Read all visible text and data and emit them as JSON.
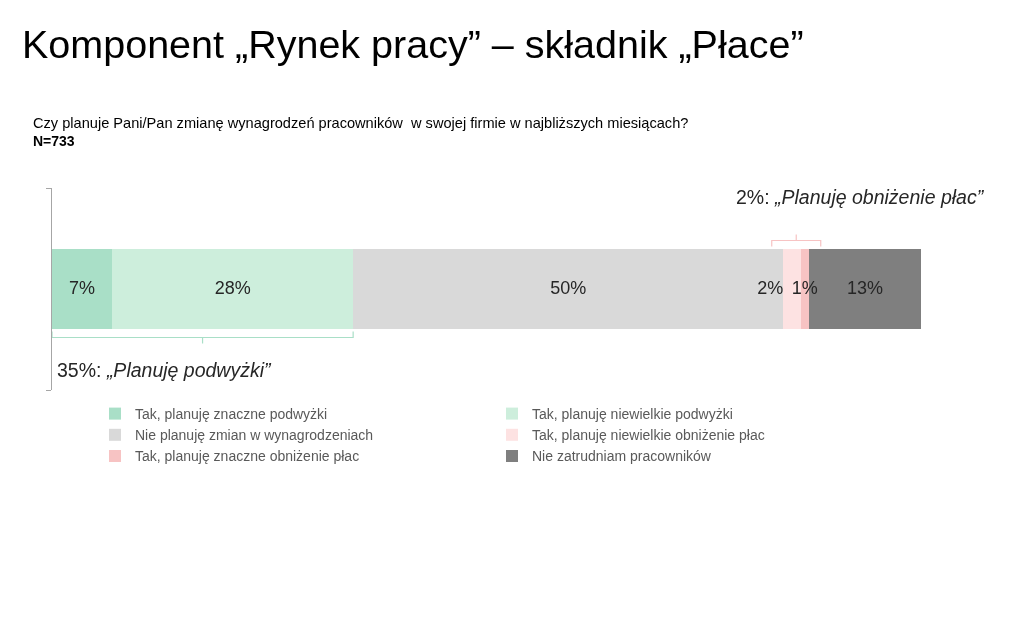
{
  "chart_data": {
    "type": "bar",
    "orientation": "horizontal",
    "stacked": true,
    "title": "Komponent „Rynek pracy” – składnik „Płace”",
    "subtitle": "Czy planuje Pani/Pan zmianę wynagrodzeń pracowników  w swojej firmie w najbliższych miesiącach?",
    "annotations": [
      "N=733",
      "35%: „Planuję podwyżki”",
      "2%: „Planuję obniżenie płac”"
    ],
    "categories": [
      null
    ],
    "series": [
      {
        "name": "Tak, planuję znaczne podwyżki",
        "color": "#a9dfc7",
        "values": [
          7
        ],
        "value_labels": [
          "7%"
        ]
      },
      {
        "name": "Tak, planuję niewielkie podwyżki",
        "color": "#cdeedc",
        "values": [
          28
        ],
        "value_labels": [
          "28%"
        ]
      },
      {
        "name": "Nie planuję zmian w wynagrodzeniach",
        "color": "#d9d9d9",
        "values": [
          50
        ],
        "value_labels": [
          "50%"
        ]
      },
      {
        "name": "Tak, planuję niewielkie obniżenie płac",
        "color": "#fde2e2",
        "values": [
          2
        ],
        "value_labels": [
          "2%"
        ]
      },
      {
        "name": "Tak, planuję znaczne obniżenie płac",
        "color": "#f7c3c3",
        "values": [
          1
        ],
        "value_labels": [
          "1%"
        ]
      },
      {
        "name": "Nie zatrudniam pracowników",
        "color": "#7f7f7f",
        "values": [
          13
        ],
        "value_labels": [
          "13%"
        ]
      }
    ],
    "legend": "bottom",
    "grid": false,
    "tick_labels": false
  }
}
